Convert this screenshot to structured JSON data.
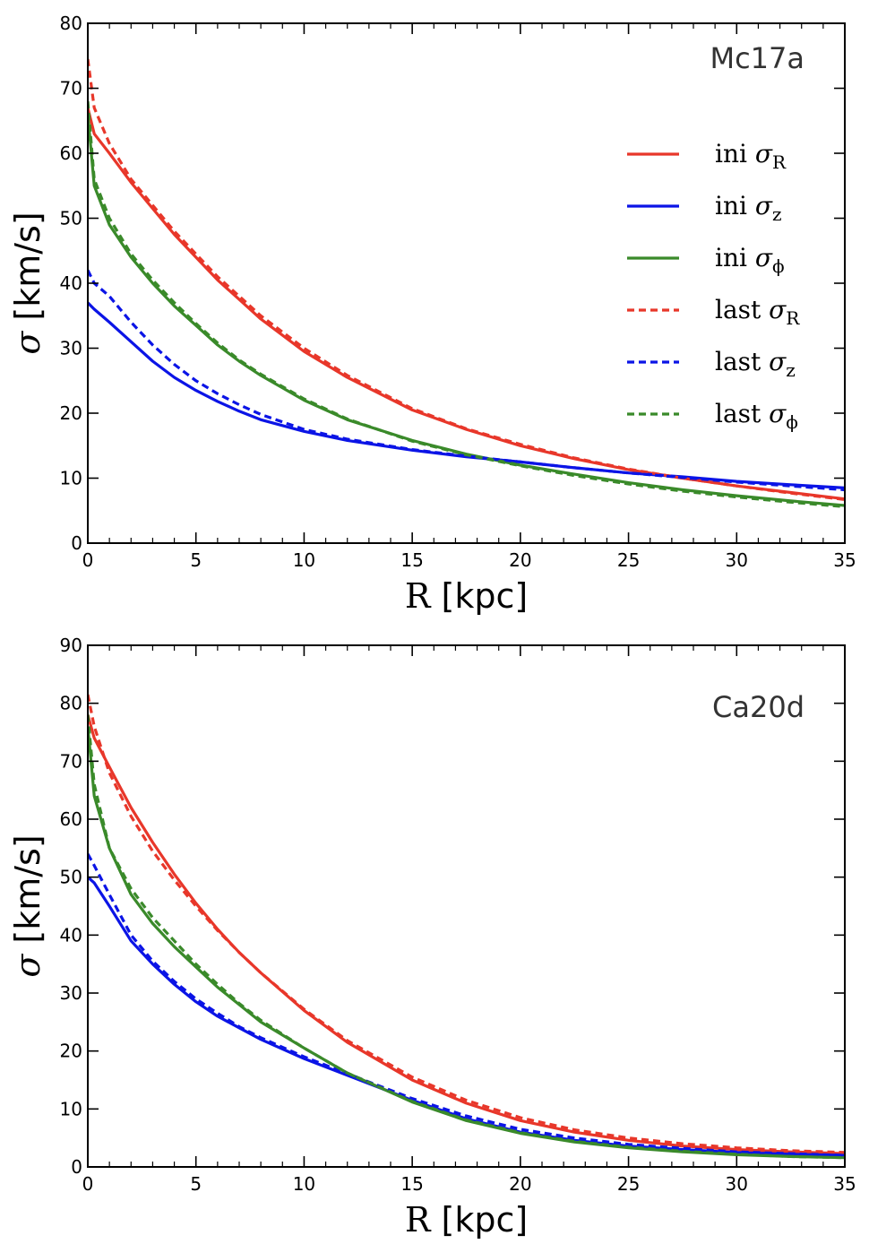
{
  "colors": {
    "red": "#e8372a",
    "blue": "#0b14e6",
    "green": "#3a8a2a"
  },
  "legend_entries": [
    {
      "prefix": "ini",
      "sym": "σ",
      "sub": "R",
      "color": "#e8372a",
      "style": "solid"
    },
    {
      "prefix": "ini",
      "sym": "σ",
      "sub": "z",
      "color": "#0b14e6",
      "style": "solid"
    },
    {
      "prefix": "ini",
      "sym": "σ",
      "sub": "ϕ",
      "color": "#3a8a2a",
      "style": "solid"
    },
    {
      "prefix": "last",
      "sym": "σ",
      "sub": "R",
      "color": "#e8372a",
      "style": "dashed"
    },
    {
      "prefix": "last",
      "sym": "σ",
      "sub": "z",
      "color": "#0b14e6",
      "style": "dashed"
    },
    {
      "prefix": "last",
      "sym": "σ",
      "sub": "ϕ",
      "color": "#3a8a2a",
      "style": "dashed"
    }
  ],
  "chart_data": [
    {
      "type": "line",
      "title": "Mc17a",
      "xlabel_sym": "R",
      "xlabel_unit": "[kpc]",
      "ylabel_sym": "σ",
      "ylabel_unit": "[km/s]",
      "xlim": [
        0,
        35
      ],
      "ylim": [
        0,
        80
      ],
      "xticks": [
        "0",
        "5",
        "10",
        "15",
        "20",
        "25",
        "30",
        "35"
      ],
      "yticks": [
        "0",
        "10",
        "20",
        "30",
        "40",
        "50",
        "60",
        "70",
        "80"
      ],
      "legend_location": "right",
      "x": [
        0,
        0.3,
        1,
        2,
        3,
        4,
        5,
        6,
        7,
        8,
        10,
        12,
        15,
        17.5,
        20,
        22.5,
        25,
        27.5,
        30,
        32.5,
        35
      ],
      "series": [
        {
          "name": "ini σR",
          "color": "#e8372a",
          "style": "solid",
          "values": [
            67,
            63,
            60,
            55.5,
            51.5,
            47.5,
            44,
            40.5,
            37.5,
            34.5,
            29.5,
            25.5,
            20.5,
            17.5,
            15,
            13,
            11.3,
            10,
            8.8,
            7.8,
            6.8
          ]
        },
        {
          "name": "ini σz",
          "color": "#0b14e6",
          "style": "solid",
          "values": [
            37,
            36,
            34,
            31,
            28,
            25.5,
            23.5,
            21.8,
            20.3,
            19,
            17.2,
            15.8,
            14.3,
            13.3,
            12.5,
            11.6,
            10.8,
            10.2,
            9.5,
            9,
            8.5
          ]
        },
        {
          "name": "ini σϕ",
          "color": "#3a8a2a",
          "style": "solid",
          "values": [
            66,
            55,
            49,
            44,
            40,
            36.5,
            33.5,
            30.5,
            28,
            25.8,
            22,
            19,
            15.8,
            13.7,
            12,
            10.6,
            9.3,
            8.2,
            7.3,
            6.5,
            5.8
          ]
        },
        {
          "name": "last σR",
          "color": "#e8372a",
          "style": "dashed",
          "values": [
            74.5,
            67,
            61.5,
            56,
            52,
            48,
            44.5,
            41,
            38,
            35,
            30,
            25.8,
            20.7,
            17.6,
            15.2,
            13.1,
            11.4,
            10,
            8.8,
            7.7,
            6.7
          ]
        },
        {
          "name": "last σz",
          "color": "#0b14e6",
          "style": "dashed",
          "values": [
            42,
            40,
            38,
            34,
            30.5,
            27.5,
            25,
            23,
            21.3,
            19.8,
            17.5,
            16,
            14.4,
            13.4,
            12.5,
            11.6,
            10.8,
            10.1,
            9.4,
            8.8,
            8.2
          ]
        },
        {
          "name": "last σϕ",
          "color": "#3a8a2a",
          "style": "dashed",
          "values": [
            68,
            56,
            50,
            44.5,
            40.5,
            37,
            33.8,
            30.8,
            28.2,
            26,
            22.2,
            19.1,
            15.7,
            13.6,
            11.9,
            10.4,
            9.1,
            8,
            7.1,
            6.3,
            5.6
          ]
        }
      ]
    },
    {
      "type": "line",
      "title": "Ca20d",
      "xlabel_sym": "R",
      "xlabel_unit": "[kpc]",
      "ylabel_sym": "σ",
      "ylabel_unit": "[km/s]",
      "xlim": [
        0,
        35
      ],
      "ylim": [
        0,
        90
      ],
      "xticks": [
        "0",
        "5",
        "10",
        "15",
        "20",
        "25",
        "30",
        "35"
      ],
      "yticks": [
        "0",
        "10",
        "20",
        "30",
        "40",
        "50",
        "60",
        "70",
        "80",
        "90"
      ],
      "legend_location": "none",
      "x": [
        0,
        0.3,
        1,
        2,
        3,
        4,
        5,
        6,
        7,
        8,
        10,
        12,
        15,
        17.5,
        20,
        22.5,
        25,
        27.5,
        30,
        32.5,
        35
      ],
      "series": [
        {
          "name": "ini σR",
          "color": "#e8372a",
          "style": "solid",
          "values": [
            78,
            74,
            69,
            62,
            56,
            50.5,
            45.5,
            41,
            37,
            33.5,
            27,
            21.5,
            15,
            11,
            8,
            6,
            4.6,
            3.6,
            3,
            2.6,
            2.3
          ]
        },
        {
          "name": "ini σz",
          "color": "#0b14e6",
          "style": "solid",
          "values": [
            50,
            49,
            45,
            39,
            35,
            31.5,
            28.5,
            26,
            24,
            22,
            18.7,
            15.8,
            11.5,
            8.3,
            6,
            4.6,
            3.6,
            3,
            2.5,
            2.2,
            2
          ]
        },
        {
          "name": "ini σϕ",
          "color": "#3a8a2a",
          "style": "solid",
          "values": [
            76,
            64,
            55,
            47,
            42,
            38,
            34.5,
            31,
            28,
            25,
            20.5,
            16.2,
            11.2,
            8,
            5.8,
            4.3,
            3.3,
            2.6,
            2.1,
            1.8,
            1.6
          ]
        },
        {
          "name": "last σR",
          "color": "#e8372a",
          "style": "dashed",
          "values": [
            81.5,
            76,
            68,
            60.5,
            54.5,
            49.5,
            45,
            40.8,
            37,
            33.5,
            27.2,
            21.8,
            15.5,
            11.5,
            8.5,
            6.4,
            5,
            4,
            3.3,
            2.8,
            2.5
          ]
        },
        {
          "name": "last σz",
          "color": "#0b14e6",
          "style": "dashed",
          "values": [
            54,
            52,
            47,
            40,
            35.5,
            32,
            29,
            26.5,
            24.2,
            22.3,
            19,
            16.1,
            11.8,
            8.8,
            6.5,
            5,
            3.9,
            3.2,
            2.6,
            2.3,
            2
          ]
        },
        {
          "name": "last σϕ",
          "color": "#3a8a2a",
          "style": "dashed",
          "values": [
            78,
            66,
            55,
            48,
            43,
            39,
            35,
            31.5,
            28.2,
            25.3,
            20.5,
            16.2,
            11.3,
            8.1,
            5.9,
            4.4,
            3.4,
            2.7,
            2.2,
            1.8,
            1.6
          ]
        }
      ]
    }
  ]
}
